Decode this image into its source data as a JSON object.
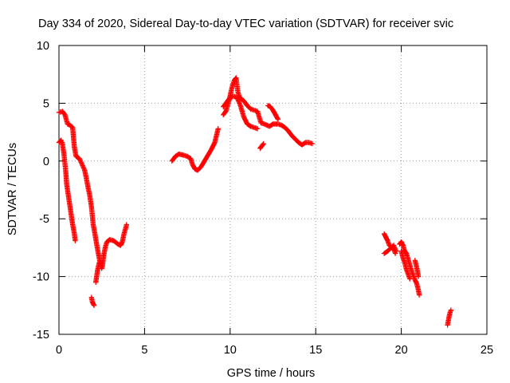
{
  "chart_data": {
    "type": "scatter",
    "title": "Day 334 of 2020, Sidereal Day-to-day VTEC variation (SDTVAR) for receiver svic",
    "xlabel": "GPS time / hours",
    "ylabel": "SDTVAR / TECUs",
    "xlim": [
      0,
      25
    ],
    "ylim": [
      -15,
      10
    ],
    "xticks": [
      0,
      5,
      10,
      15,
      20,
      25
    ],
    "yticks": [
      -15,
      -10,
      -5,
      0,
      5,
      10
    ],
    "grid": true,
    "marker": "+",
    "series_color": "#ff0000",
    "segments": [
      [
        [
          0.0,
          4.2
        ],
        [
          0.2,
          4.3
        ],
        [
          0.35,
          4.0
        ],
        [
          0.5,
          3.2
        ],
        [
          0.65,
          3.1
        ],
        [
          0.8,
          2.9
        ],
        [
          0.85,
          2.0
        ],
        [
          0.9,
          1.2
        ],
        [
          1.0,
          0.4
        ],
        [
          1.2,
          0.2
        ],
        [
          1.35,
          -0.3
        ],
        [
          1.5,
          -0.8
        ],
        [
          1.6,
          -1.5
        ],
        [
          1.7,
          -2.3
        ],
        [
          1.8,
          -3.0
        ],
        [
          1.9,
          -4.0
        ],
        [
          2.0,
          -5.5
        ],
        [
          2.1,
          -6.3
        ],
        [
          2.2,
          -7.2
        ],
        [
          2.3,
          -8.0
        ],
        [
          2.4,
          -8.8
        ],
        [
          2.5,
          -9.3
        ],
        [
          2.55,
          -9.0
        ],
        [
          2.6,
          -8.3
        ],
        [
          2.7,
          -7.5
        ],
        [
          2.8,
          -7.0
        ],
        [
          2.95,
          -6.8
        ],
        [
          3.2,
          -6.9
        ],
        [
          3.45,
          -7.2
        ],
        [
          3.6,
          -7.3
        ],
        [
          3.7,
          -7.0
        ],
        [
          3.8,
          -6.3
        ],
        [
          3.9,
          -5.8
        ],
        [
          3.95,
          -5.5
        ]
      ],
      [
        [
          0.0,
          1.6
        ],
        [
          0.12,
          1.8
        ],
        [
          0.2,
          1.5
        ],
        [
          0.3,
          0.5
        ],
        [
          0.4,
          -1.0
        ],
        [
          0.45,
          -2.0
        ],
        [
          0.5,
          -2.5
        ],
        [
          0.6,
          -3.5
        ],
        [
          0.7,
          -4.5
        ],
        [
          0.8,
          -5.5
        ],
        [
          0.9,
          -6.3
        ],
        [
          0.95,
          -6.9
        ]
      ],
      [
        [
          1.9,
          -11.8
        ],
        [
          1.95,
          -12.2
        ],
        [
          2.05,
          -12.5
        ]
      ],
      [
        [
          2.15,
          -10.5
        ],
        [
          2.25,
          -9.5
        ],
        [
          2.35,
          -8.8
        ]
      ],
      [
        [
          6.6,
          0.0
        ],
        [
          6.8,
          0.4
        ],
        [
          7.0,
          0.6
        ],
        [
          7.3,
          0.5
        ],
        [
          7.5,
          0.4
        ],
        [
          7.7,
          0.2
        ],
        [
          7.8,
          -0.3
        ],
        [
          7.95,
          -0.7
        ],
        [
          8.1,
          -0.8
        ],
        [
          8.3,
          -0.5
        ],
        [
          8.5,
          0.0
        ],
        [
          8.7,
          0.5
        ],
        [
          8.9,
          1.0
        ],
        [
          9.1,
          1.6
        ],
        [
          9.2,
          2.2
        ],
        [
          9.3,
          2.8
        ]
      ],
      [
        [
          9.6,
          4.0
        ],
        [
          9.75,
          4.3
        ],
        [
          9.85,
          4.8
        ],
        [
          9.95,
          5.3
        ],
        [
          10.05,
          6.0
        ],
        [
          10.15,
          6.6
        ],
        [
          10.25,
          7.0
        ],
        [
          10.35,
          7.2
        ],
        [
          10.45,
          6.0
        ],
        [
          10.55,
          5.5
        ],
        [
          10.8,
          5.2
        ],
        [
          11.0,
          4.8
        ],
        [
          11.2,
          4.5
        ],
        [
          11.4,
          4.4
        ],
        [
          11.6,
          4.3
        ],
        [
          11.8,
          3.3
        ],
        [
          12.0,
          3.2
        ],
        [
          12.3,
          3.0
        ],
        [
          12.5,
          3.2
        ],
        [
          12.8,
          3.2
        ],
        [
          13.0,
          3.1
        ],
        [
          13.2,
          2.9
        ],
        [
          13.4,
          2.6
        ],
        [
          13.6,
          2.2
        ],
        [
          13.8,
          1.9
        ],
        [
          14.0,
          1.6
        ],
        [
          14.2,
          1.4
        ],
        [
          14.4,
          1.6
        ],
        [
          14.6,
          1.6
        ],
        [
          14.8,
          1.5
        ]
      ],
      [
        [
          9.6,
          4.7
        ],
        [
          9.8,
          5.1
        ],
        [
          10.0,
          5.5
        ],
        [
          10.2,
          5.6
        ],
        [
          10.4,
          5.5
        ],
        [
          10.6,
          4.8
        ],
        [
          10.8,
          3.8
        ],
        [
          11.0,
          3.2
        ],
        [
          11.2,
          3.0
        ],
        [
          11.4,
          2.9
        ],
        [
          11.6,
          2.8
        ]
      ],
      [
        [
          11.75,
          1.1
        ],
        [
          11.85,
          1.3
        ],
        [
          11.95,
          1.5
        ]
      ],
      [
        [
          12.2,
          4.8
        ],
        [
          12.35,
          4.7
        ],
        [
          12.5,
          4.4
        ],
        [
          12.65,
          4.0
        ],
        [
          12.8,
          3.6
        ]
      ],
      [
        [
          19.0,
          -6.3
        ],
        [
          19.1,
          -6.6
        ],
        [
          19.2,
          -6.9
        ],
        [
          19.3,
          -7.3
        ],
        [
          19.45,
          -7.5
        ],
        [
          19.55,
          -7.6
        ],
        [
          19.65,
          -8.0
        ]
      ],
      [
        [
          19.0,
          -8.0
        ],
        [
          19.2,
          -7.8
        ],
        [
          19.4,
          -7.5
        ],
        [
          19.55,
          -7.3
        ],
        [
          19.7,
          -7.8
        ]
      ],
      [
        [
          19.9,
          -7.2
        ],
        [
          20.0,
          -7.0
        ],
        [
          20.1,
          -7.3
        ],
        [
          20.2,
          -7.8
        ],
        [
          20.3,
          -8.0
        ],
        [
          20.4,
          -8.5
        ],
        [
          20.5,
          -9.0
        ],
        [
          20.6,
          -9.5
        ],
        [
          20.7,
          -9.9
        ],
        [
          20.8,
          -10.3
        ],
        [
          20.9,
          -10.6
        ],
        [
          21.0,
          -11.2
        ],
        [
          21.05,
          -11.6
        ]
      ],
      [
        [
          20.0,
          -7.8
        ],
        [
          20.1,
          -8.4
        ],
        [
          20.2,
          -8.8
        ],
        [
          20.3,
          -9.4
        ],
        [
          20.4,
          -9.8
        ],
        [
          20.5,
          -10.2
        ]
      ],
      [
        [
          20.8,
          -8.6
        ],
        [
          20.9,
          -9.2
        ],
        [
          21.0,
          -10.0
        ]
      ],
      [
        [
          22.7,
          -14.2
        ],
        [
          22.75,
          -13.8
        ],
        [
          22.8,
          -13.4
        ],
        [
          22.85,
          -13.1
        ],
        [
          22.9,
          -12.9
        ]
      ]
    ]
  }
}
